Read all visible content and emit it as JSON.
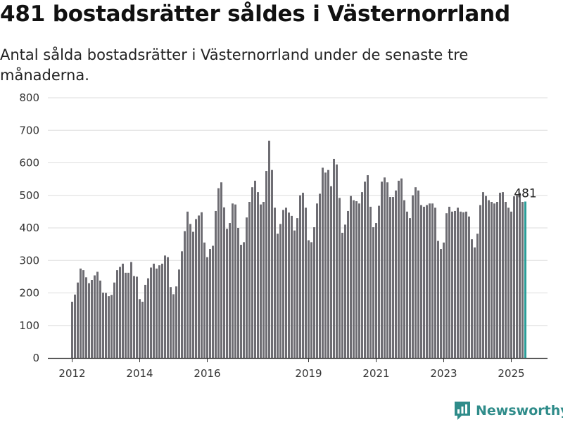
{
  "header": {
    "title": "481 bostadsrätter såldes i Västernorrland",
    "subtitle": "Antal sålda bostadsrätter i Västernorrland under de senaste tre månaderna."
  },
  "brand": {
    "name": "Newsworthy",
    "logo_icon": "bar-chart-speech-bubble-icon"
  },
  "colors": {
    "bar": "#6e6d73",
    "highlight": "#2a9d98",
    "grid": "#dddddd",
    "axis": "#333333"
  },
  "chart_data": {
    "type": "bar",
    "title": "481 bostadsrätter såldes i Västernorrland",
    "subtitle": "Antal sålda bostadsrätter i Västernorrland under de senaste tre månaderna.",
    "xlabel": "",
    "ylabel": "",
    "ylim": [
      0,
      800
    ],
    "yticks": [
      0,
      100,
      200,
      300,
      400,
      500,
      600,
      700,
      800
    ],
    "grid": true,
    "x_start": "2012-01",
    "x_tick_labels": [
      "2012",
      "2014",
      "2016",
      "2019",
      "2021",
      "2023",
      "2025"
    ],
    "x_tick_months": [
      "2012-01",
      "2014-01",
      "2016-01",
      "2019-01",
      "2021-01",
      "2023-01",
      "2025-01"
    ],
    "annotation": {
      "label": "481",
      "month": "2025-06"
    },
    "values": [
      173,
      195,
      232,
      275,
      270,
      248,
      230,
      240,
      254,
      265,
      238,
      201,
      200,
      190,
      194,
      232,
      270,
      280,
      290,
      262,
      262,
      295,
      252,
      250,
      181,
      173,
      225,
      245,
      278,
      290,
      275,
      285,
      290,
      315,
      310,
      218,
      196,
      220,
      272,
      328,
      390,
      450,
      412,
      388,
      427,
      438,
      448,
      355,
      310,
      335,
      345,
      452,
      522,
      540,
      463,
      397,
      415,
      475,
      472,
      400,
      348,
      356,
      432,
      480,
      525,
      545,
      510,
      472,
      480,
      575,
      668,
      578,
      462,
      382,
      412,
      455,
      462,
      447,
      437,
      392,
      430,
      500,
      508,
      462,
      362,
      356,
      402,
      475,
      505,
      585,
      570,
      578,
      528,
      612,
      595,
      492,
      385,
      410,
      452,
      498,
      485,
      482,
      475,
      510,
      542,
      562,
      465,
      402,
      415,
      468,
      542,
      555,
      540,
      495,
      495,
      515,
      545,
      552,
      485,
      450,
      430,
      500,
      525,
      515,
      470,
      465,
      470,
      475,
      475,
      462,
      360,
      335,
      355,
      445,
      465,
      450,
      452,
      462,
      450,
      448,
      450,
      435,
      365,
      340,
      382,
      470,
      510,
      498,
      485,
      480,
      475,
      480,
      508,
      510,
      480,
      462,
      450,
      497,
      500,
      508,
      480,
      481
    ]
  }
}
